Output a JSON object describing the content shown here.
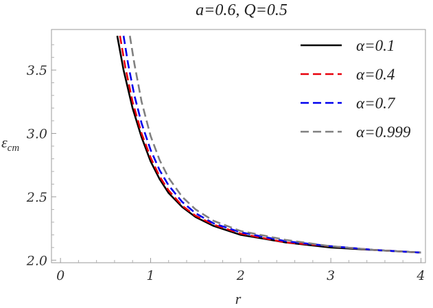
{
  "chart_data": {
    "type": "line",
    "title": "a=0.6, Q=0.5",
    "xlabel": "r",
    "ylabel": "ε",
    "ylabel_sub": "cm",
    "xlim": [
      -0.1,
      4.05
    ],
    "ylim": [
      1.98,
      3.82
    ],
    "xticks": [
      0,
      1,
      2,
      3,
      4
    ],
    "xtick_labels": [
      "0",
      "1",
      "2",
      "3",
      "4"
    ],
    "yticks": [
      2.0,
      2.5,
      3.0,
      3.5
    ],
    "ytick_labels": [
      "2.0",
      "2.5",
      "3.0",
      "3.5"
    ],
    "grid": false,
    "legend_position": "top-right",
    "series": [
      {
        "name": "α=0.1",
        "color": "#000000",
        "dash": "solid",
        "x": [
          0.63,
          0.7,
          0.8,
          0.9,
          1.0,
          1.1,
          1.2,
          1.35,
          1.5,
          1.7,
          2.0,
          2.5,
          3.0,
          3.5,
          4.0
        ],
        "y": [
          3.77,
          3.5,
          3.2,
          2.97,
          2.78,
          2.64,
          2.53,
          2.42,
          2.34,
          2.27,
          2.2,
          2.14,
          2.1,
          2.08,
          2.06
        ]
      },
      {
        "name": "α=0.4",
        "color": "#e8000b",
        "dash": "dashed",
        "x": [
          0.66,
          0.72,
          0.8,
          0.9,
          1.0,
          1.1,
          1.2,
          1.35,
          1.5,
          1.7,
          2.0,
          2.5,
          3.0,
          3.5,
          4.0
        ],
        "y": [
          3.77,
          3.52,
          3.25,
          3.0,
          2.81,
          2.66,
          2.55,
          2.43,
          2.35,
          2.28,
          2.21,
          2.14,
          2.11,
          2.08,
          2.06
        ]
      },
      {
        "name": "α=0.7",
        "color": "#0000ee",
        "dash": "dashed",
        "x": [
          0.7,
          0.75,
          0.82,
          0.9,
          1.0,
          1.1,
          1.2,
          1.35,
          1.5,
          1.7,
          2.0,
          2.5,
          3.0,
          3.5,
          4.0
        ],
        "y": [
          3.77,
          3.55,
          3.3,
          3.08,
          2.87,
          2.71,
          2.59,
          2.46,
          2.37,
          2.29,
          2.22,
          2.15,
          2.11,
          2.08,
          2.06
        ]
      },
      {
        "name": "α=0.999",
        "color": "#808080",
        "dash": "dashed",
        "x": [
          0.77,
          0.82,
          0.9,
          1.0,
          1.1,
          1.2,
          1.35,
          1.5,
          1.7,
          2.0,
          2.5,
          3.0,
          3.5,
          4.0
        ],
        "y": [
          3.77,
          3.55,
          3.25,
          2.98,
          2.79,
          2.65,
          2.5,
          2.4,
          2.31,
          2.23,
          2.16,
          2.11,
          2.08,
          2.06
        ]
      }
    ]
  }
}
